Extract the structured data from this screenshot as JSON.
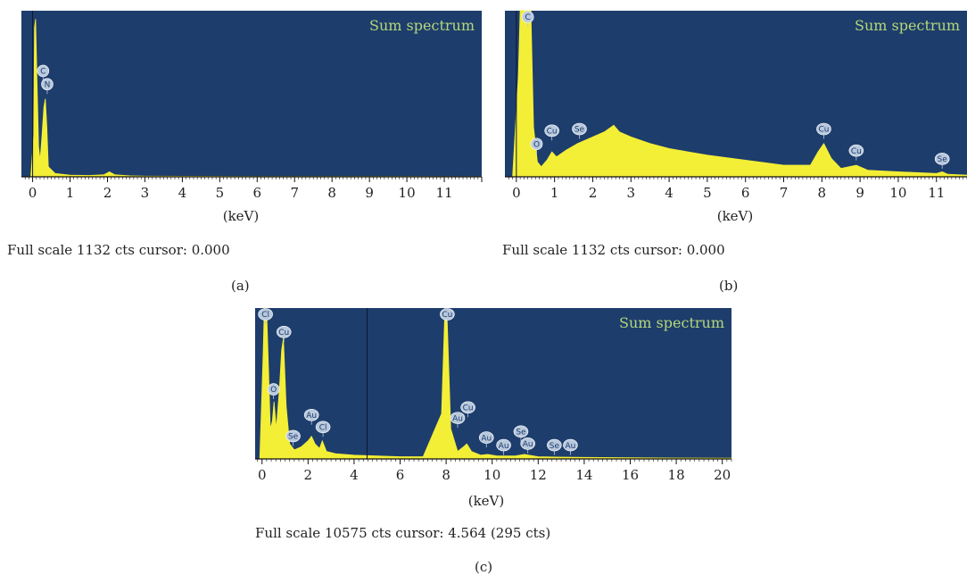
{
  "colors": {
    "plot_bg": "#1d3d6c",
    "spectrum": "#f3ee36",
    "label_bubble": "#b9c9dd",
    "title": "#b5d77a"
  },
  "chart_data": [
    {
      "id": "a",
      "type": "area",
      "title": "Sum spectrum",
      "xlabel": "(keV)",
      "xlim": [
        -0.3,
        12
      ],
      "ylim": [
        0,
        1
      ],
      "xticks": [
        0,
        1,
        2,
        3,
        4,
        5,
        6,
        7,
        8,
        9,
        10,
        11
      ],
      "cursor_line": 0,
      "x": [
        -0.05,
        0.03,
        0.05,
        0.08,
        0.12,
        0.16,
        0.2,
        0.25,
        0.3,
        0.34,
        0.38,
        0.42,
        0.6,
        1.0,
        1.5,
        1.9,
        2.05,
        2.2,
        2.6,
        3.0,
        4.0,
        6.0,
        8.0,
        10.0,
        12.0
      ],
      "y": [
        0.0,
        0.25,
        0.9,
        0.95,
        0.55,
        0.18,
        0.1,
        0.25,
        0.42,
        0.47,
        0.3,
        0.06,
        0.02,
        0.01,
        0.008,
        0.012,
        0.03,
        0.012,
        0.006,
        0.004,
        0.003,
        0.002,
        0.002,
        0.002,
        0.001
      ],
      "peak_labels": [
        {
          "label": "C",
          "x": 0.28,
          "y": 0.6
        },
        {
          "label": "N",
          "x": 0.39,
          "y": 0.52
        }
      ],
      "full_scale_text": "Full scale 1132 cts cursor: 0.000",
      "caption": "(a)"
    },
    {
      "id": "b",
      "type": "area",
      "title": "Sum spectrum",
      "xlabel": "(keV)",
      "xlim": [
        -0.3,
        11.8
      ],
      "ylim": [
        0,
        1
      ],
      "xticks": [
        0,
        1,
        2,
        3,
        4,
        5,
        6,
        7,
        8,
        9,
        10,
        11
      ],
      "cursor_line": 0,
      "x": [
        -0.1,
        0.05,
        0.1,
        0.15,
        0.2,
        0.3,
        0.38,
        0.45,
        0.55,
        0.65,
        0.8,
        0.93,
        1.05,
        1.3,
        1.6,
        2.0,
        2.3,
        2.55,
        2.7,
        3.0,
        3.5,
        4.0,
        4.5,
        5.0,
        6.0,
        7.0,
        7.7,
        7.9,
        8.05,
        8.25,
        8.5,
        8.9,
        9.2,
        10.0,
        11.0,
        11.15,
        11.3,
        11.8
      ],
      "y": [
        0.0,
        0.6,
        1.0,
        1.0,
        1.0,
        1.0,
        1.0,
        0.3,
        0.09,
        0.06,
        0.1,
        0.15,
        0.12,
        0.16,
        0.2,
        0.24,
        0.27,
        0.31,
        0.27,
        0.24,
        0.2,
        0.17,
        0.15,
        0.13,
        0.1,
        0.07,
        0.07,
        0.15,
        0.2,
        0.11,
        0.05,
        0.07,
        0.04,
        0.03,
        0.02,
        0.03,
        0.015,
        0.01
      ],
      "peak_labels": [
        {
          "label": "C",
          "x": 0.3,
          "y": 1.05
        },
        {
          "label": "O",
          "x": 0.53,
          "y": 0.16
        },
        {
          "label": "Cu",
          "x": 0.93,
          "y": 0.24
        },
        {
          "label": "Se",
          "x": 1.65,
          "y": 0.25
        },
        {
          "label": "Cu",
          "x": 8.05,
          "y": 0.25
        },
        {
          "label": "Cu",
          "x": 8.9,
          "y": 0.12
        },
        {
          "label": "Se",
          "x": 11.15,
          "y": 0.07
        }
      ],
      "full_scale_text": "Full scale 1132 cts cursor: 0.000",
      "caption": "(b)"
    },
    {
      "id": "c",
      "type": "area",
      "title": "Sum spectrum",
      "xlabel": "(keV)",
      "xlim": [
        -0.3,
        20.4
      ],
      "ylim": [
        0,
        1
      ],
      "xticks": [
        0,
        2,
        4,
        6,
        8,
        10,
        12,
        14,
        16,
        18,
        20
      ],
      "cursor_line": 4.564,
      "x": [
        -0.1,
        0.05,
        0.1,
        0.2,
        0.28,
        0.36,
        0.45,
        0.52,
        0.62,
        0.75,
        0.85,
        0.93,
        1.05,
        1.2,
        1.4,
        1.7,
        2.0,
        2.15,
        2.3,
        2.5,
        2.62,
        2.8,
        3.2,
        4.0,
        5.0,
        6.0,
        7.0,
        7.8,
        7.95,
        8.05,
        8.2,
        8.5,
        8.75,
        8.9,
        9.1,
        9.5,
        9.8,
        10.2,
        11.0,
        11.4,
        12.0,
        13.0,
        14.0,
        16.0,
        18.0,
        20.4
      ],
      "y": [
        0.0,
        0.7,
        1.0,
        0.98,
        0.6,
        0.2,
        0.25,
        0.38,
        0.2,
        0.45,
        0.72,
        0.8,
        0.35,
        0.1,
        0.06,
        0.08,
        0.12,
        0.15,
        0.1,
        0.07,
        0.12,
        0.05,
        0.035,
        0.025,
        0.02,
        0.015,
        0.015,
        0.3,
        1.0,
        0.9,
        0.2,
        0.05,
        0.08,
        0.1,
        0.05,
        0.025,
        0.03,
        0.02,
        0.02,
        0.03,
        0.015,
        0.012,
        0.01,
        0.008,
        0.006,
        0.005
      ],
      "peak_labels": [
        {
          "label": "Cl",
          "x": 0.15,
          "y": 1.01
        },
        {
          "label": "O",
          "x": 0.5,
          "y": 0.42
        },
        {
          "label": "Cu",
          "x": 0.95,
          "y": 0.8
        },
        {
          "label": "Se",
          "x": 1.35,
          "y": 0.11
        },
        {
          "label": "Au",
          "x": 2.15,
          "y": 0.25
        },
        {
          "label": "Cl",
          "x": 2.65,
          "y": 0.17
        },
        {
          "label": "Cu",
          "x": 8.05,
          "y": 1.01
        },
        {
          "label": "Au",
          "x": 8.5,
          "y": 0.23
        },
        {
          "label": "Cu",
          "x": 8.95,
          "y": 0.3
        },
        {
          "label": "Au",
          "x": 9.75,
          "y": 0.1
        },
        {
          "label": "Au",
          "x": 10.5,
          "y": 0.05
        },
        {
          "label": "Se",
          "x": 11.25,
          "y": 0.14
        },
        {
          "label": "Au",
          "x": 11.55,
          "y": 0.06
        },
        {
          "label": "Se",
          "x": 12.7,
          "y": 0.05
        },
        {
          "label": "Au",
          "x": 13.4,
          "y": 0.05
        }
      ],
      "full_scale_text": "Full scale 10575 cts cursor: 4.564 (295 cts)",
      "caption": "(c)"
    }
  ]
}
